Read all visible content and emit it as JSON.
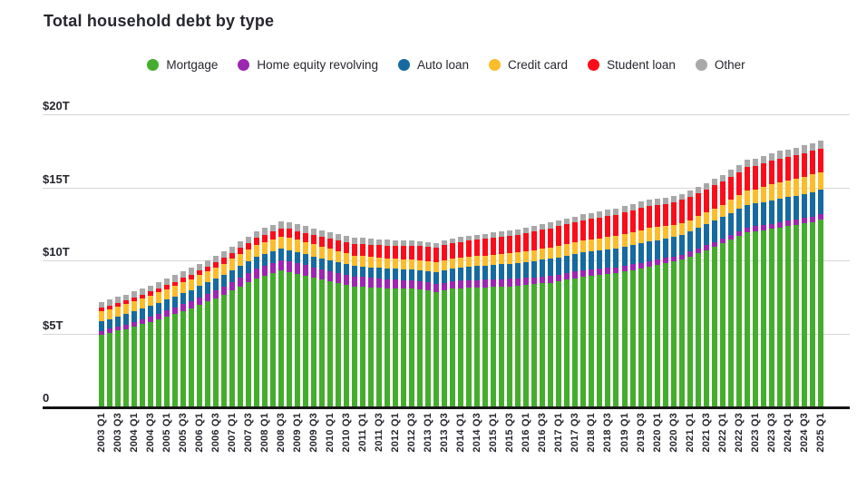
{
  "header": {
    "title": "Total household debt by type"
  },
  "legend": {
    "items": [
      {
        "label": "Mortgage",
        "color": "#45ad2d"
      },
      {
        "label": "Home equity revolving",
        "color": "#9c27b0"
      },
      {
        "label": "Auto loan",
        "color": "#166a9f"
      },
      {
        "label": "Credit card",
        "color": "#fcbd2b"
      },
      {
        "label": "Student loan",
        "color": "#fa0d1a"
      },
      {
        "label": "Other",
        "color": "#a8a8a8"
      }
    ]
  },
  "y_axis": {
    "ticks": [
      {
        "label": "$20T",
        "value": 20
      },
      {
        "label": "$15T",
        "value": 15
      },
      {
        "label": "$10T",
        "value": 10
      },
      {
        "label": "$5T",
        "value": 5
      },
      {
        "label": "0",
        "value": 0
      }
    ]
  },
  "chart_data": {
    "type": "bar",
    "stacked": true,
    "title": "Total household debt by type",
    "unit": "USD trillions",
    "ylim": [
      0,
      20
    ],
    "grid": "horizontal",
    "legend_position": "top",
    "x_tick_rule": "labels shown for Q1 and Q3 only (every second bar)",
    "categories": [
      "2003 Q1",
      "2003 Q2",
      "2003 Q3",
      "2003 Q4",
      "2004 Q1",
      "2004 Q2",
      "2004 Q3",
      "2004 Q4",
      "2005 Q1",
      "2005 Q2",
      "2005 Q3",
      "2005 Q4",
      "2006 Q1",
      "2006 Q2",
      "2006 Q3",
      "2006 Q4",
      "2007 Q1",
      "2007 Q2",
      "2007 Q3",
      "2007 Q4",
      "2008 Q1",
      "2008 Q2",
      "2008 Q3",
      "2008 Q4",
      "2009 Q1",
      "2009 Q2",
      "2009 Q3",
      "2009 Q4",
      "2010 Q1",
      "2010 Q2",
      "2010 Q3",
      "2010 Q4",
      "2011 Q1",
      "2011 Q2",
      "2011 Q3",
      "2011 Q4",
      "2012 Q1",
      "2012 Q2",
      "2012 Q3",
      "2012 Q4",
      "2013 Q1",
      "2013 Q2",
      "2013 Q3",
      "2013 Q4",
      "2014 Q1",
      "2014 Q2",
      "2014 Q3",
      "2014 Q4",
      "2015 Q1",
      "2015 Q2",
      "2015 Q3",
      "2015 Q4",
      "2016 Q1",
      "2016 Q2",
      "2016 Q3",
      "2016 Q4",
      "2017 Q1",
      "2017 Q2",
      "2017 Q3",
      "2017 Q4",
      "2018 Q1",
      "2018 Q2",
      "2018 Q3",
      "2018 Q4",
      "2019 Q1",
      "2019 Q2",
      "2019 Q3",
      "2019 Q4",
      "2020 Q1",
      "2020 Q2",
      "2020 Q3",
      "2020 Q4",
      "2021 Q1",
      "2021 Q2",
      "2021 Q3",
      "2021 Q4",
      "2022 Q1",
      "2022 Q2",
      "2022 Q3",
      "2022 Q4",
      "2023 Q1",
      "2023 Q2",
      "2023 Q3",
      "2023 Q4",
      "2024 Q1",
      "2024 Q2",
      "2024 Q3",
      "2024 Q4",
      "2025 Q1"
    ],
    "series": [
      {
        "name": "Mortgage",
        "color": "#45ad2d",
        "values": [
          4.94,
          5.06,
          5.19,
          5.31,
          5.47,
          5.63,
          5.79,
          5.95,
          6.14,
          6.33,
          6.52,
          6.71,
          6.95,
          7.18,
          7.42,
          7.65,
          7.94,
          8.22,
          8.51,
          8.79,
          8.96,
          9.12,
          9.29,
          9.22,
          9.09,
          8.96,
          8.82,
          8.69,
          8.58,
          8.46,
          8.35,
          8.23,
          8.2,
          8.16,
          8.13,
          8.1,
          8.08,
          8.06,
          8.05,
          8.03,
          7.94,
          7.84,
          7.94,
          8.05,
          8.08,
          8.11,
          8.14,
          8.17,
          8.19,
          8.21,
          8.23,
          8.25,
          8.31,
          8.37,
          8.42,
          8.48,
          8.58,
          8.68,
          8.78,
          8.88,
          8.94,
          9.0,
          9.06,
          9.12,
          9.23,
          9.34,
          9.45,
          9.56,
          9.68,
          9.8,
          9.92,
          10.04,
          10.26,
          10.49,
          10.71,
          10.93,
          11.18,
          11.42,
          11.67,
          11.92,
          12.0,
          12.08,
          12.17,
          12.25,
          12.34,
          12.43,
          12.52,
          12.61,
          12.8
        ]
      },
      {
        "name": "Home equity revolving",
        "color": "#9c27b0",
        "values": [
          0.24,
          0.26,
          0.28,
          0.3,
          0.33,
          0.35,
          0.38,
          0.4,
          0.42,
          0.44,
          0.47,
          0.49,
          0.51,
          0.53,
          0.55,
          0.57,
          0.59,
          0.6,
          0.62,
          0.63,
          0.65,
          0.67,
          0.69,
          0.7,
          0.7,
          0.71,
          0.71,
          0.71,
          0.7,
          0.69,
          0.68,
          0.67,
          0.66,
          0.65,
          0.63,
          0.62,
          0.61,
          0.59,
          0.58,
          0.56,
          0.55,
          0.55,
          0.54,
          0.53,
          0.53,
          0.52,
          0.52,
          0.51,
          0.51,
          0.5,
          0.5,
          0.49,
          0.49,
          0.48,
          0.48,
          0.47,
          0.46,
          0.46,
          0.45,
          0.44,
          0.43,
          0.43,
          0.42,
          0.41,
          0.41,
          0.4,
          0.4,
          0.39,
          0.38,
          0.37,
          0.36,
          0.35,
          0.34,
          0.33,
          0.32,
          0.32,
          0.32,
          0.33,
          0.33,
          0.34,
          0.34,
          0.35,
          0.35,
          0.36,
          0.37,
          0.38,
          0.39,
          0.4,
          0.4
        ]
      },
      {
        "name": "Auto loan",
        "color": "#166a9f",
        "values": [
          0.64,
          0.66,
          0.68,
          0.7,
          0.71,
          0.72,
          0.72,
          0.73,
          0.74,
          0.75,
          0.77,
          0.78,
          0.79,
          0.79,
          0.8,
          0.8,
          0.8,
          0.81,
          0.81,
          0.81,
          0.81,
          0.81,
          0.81,
          0.79,
          0.77,
          0.75,
          0.74,
          0.72,
          0.72,
          0.71,
          0.71,
          0.71,
          0.71,
          0.72,
          0.72,
          0.73,
          0.73,
          0.74,
          0.74,
          0.75,
          0.78,
          0.8,
          0.83,
          0.86,
          0.89,
          0.91,
          0.94,
          0.96,
          0.99,
          1.01,
          1.04,
          1.06,
          1.09,
          1.11,
          1.14,
          1.16,
          1.18,
          1.19,
          1.21,
          1.22,
          1.23,
          1.24,
          1.26,
          1.27,
          1.29,
          1.3,
          1.32,
          1.33,
          1.34,
          1.35,
          1.36,
          1.37,
          1.39,
          1.42,
          1.44,
          1.46,
          1.48,
          1.5,
          1.53,
          1.55,
          1.56,
          1.58,
          1.6,
          1.61,
          1.62,
          1.63,
          1.64,
          1.66,
          1.64
        ]
      },
      {
        "name": "Credit card",
        "color": "#fcbd2b",
        "values": [
          0.69,
          0.69,
          0.7,
          0.7,
          0.7,
          0.71,
          0.71,
          0.72,
          0.72,
          0.72,
          0.73,
          0.73,
          0.74,
          0.74,
          0.75,
          0.76,
          0.78,
          0.8,
          0.81,
          0.83,
          0.84,
          0.85,
          0.86,
          0.87,
          0.86,
          0.84,
          0.83,
          0.81,
          0.79,
          0.77,
          0.75,
          0.73,
          0.72,
          0.71,
          0.71,
          0.7,
          0.7,
          0.69,
          0.69,
          0.68,
          0.67,
          0.66,
          0.67,
          0.68,
          0.68,
          0.69,
          0.69,
          0.7,
          0.71,
          0.71,
          0.72,
          0.73,
          0.74,
          0.75,
          0.77,
          0.78,
          0.79,
          0.8,
          0.81,
          0.83,
          0.84,
          0.85,
          0.86,
          0.87,
          0.88,
          0.9,
          0.91,
          0.93,
          0.89,
          0.82,
          0.81,
          0.82,
          0.77,
          0.79,
          0.8,
          0.86,
          0.84,
          0.89,
          0.93,
          0.99,
          0.97,
          1.03,
          1.08,
          1.13,
          1.12,
          1.14,
          1.17,
          1.21,
          1.18
        ]
      },
      {
        "name": "Student loan",
        "color": "#fa0d1a",
        "values": [
          0.24,
          0.24,
          0.25,
          0.25,
          0.26,
          0.26,
          0.27,
          0.28,
          0.29,
          0.3,
          0.31,
          0.32,
          0.33,
          0.35,
          0.36,
          0.38,
          0.41,
          0.44,
          0.46,
          0.49,
          0.51,
          0.54,
          0.56,
          0.58,
          0.6,
          0.62,
          0.65,
          0.67,
          0.71,
          0.74,
          0.78,
          0.81,
          0.82,
          0.84,
          0.85,
          0.87,
          0.89,
          0.91,
          0.94,
          0.96,
          0.99,
          1.02,
          1.05,
          1.08,
          1.1,
          1.12,
          1.14,
          1.16,
          1.18,
          1.2,
          1.21,
          1.23,
          1.25,
          1.27,
          1.29,
          1.31,
          1.33,
          1.35,
          1.36,
          1.38,
          1.4,
          1.42,
          1.44,
          1.46,
          1.47,
          1.48,
          1.5,
          1.51,
          1.52,
          1.54,
          1.55,
          1.56,
          1.57,
          1.57,
          1.58,
          1.58,
          1.59,
          1.59,
          1.59,
          1.6,
          1.6,
          1.61,
          1.61,
          1.6,
          1.6,
          1.61,
          1.61,
          1.62,
          1.63
        ]
      },
      {
        "name": "Other",
        "color": "#a8a8a8",
        "values": [
          0.4,
          0.4,
          0.41,
          0.41,
          0.42,
          0.42,
          0.43,
          0.43,
          0.44,
          0.44,
          0.45,
          0.45,
          0.45,
          0.44,
          0.44,
          0.44,
          0.44,
          0.44,
          0.44,
          0.44,
          0.45,
          0.46,
          0.47,
          0.47,
          0.46,
          0.46,
          0.45,
          0.44,
          0.44,
          0.43,
          0.43,
          0.42,
          0.42,
          0.41,
          0.41,
          0.4,
          0.38,
          0.36,
          0.35,
          0.33,
          0.33,
          0.32,
          0.32,
          0.32,
          0.32,
          0.32,
          0.33,
          0.33,
          0.34,
          0.34,
          0.35,
          0.36,
          0.36,
          0.37,
          0.37,
          0.38,
          0.39,
          0.39,
          0.4,
          0.4,
          0.4,
          0.41,
          0.41,
          0.41,
          0.42,
          0.42,
          0.43,
          0.43,
          0.43,
          0.43,
          0.42,
          0.42,
          0.42,
          0.43,
          0.43,
          0.43,
          0.45,
          0.46,
          0.48,
          0.5,
          0.51,
          0.52,
          0.54,
          0.55,
          0.55,
          0.54,
          0.54,
          0.54,
          0.54
        ]
      }
    ]
  }
}
